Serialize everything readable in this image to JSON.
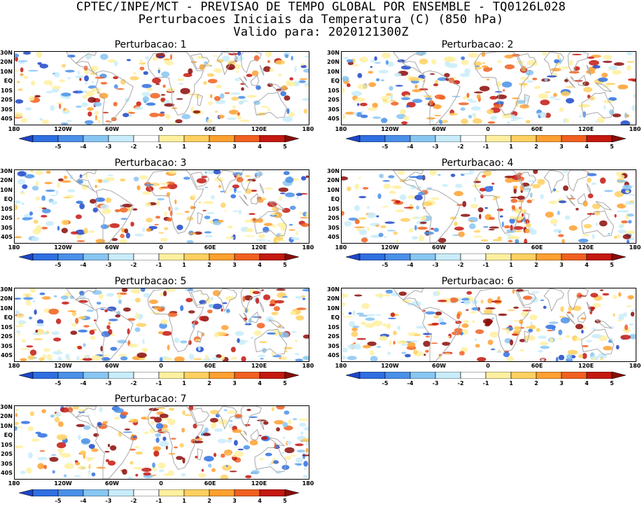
{
  "header": {
    "line1": "CPTEC/INPE/MCT - PREVISAO DE TEMPO GLOBAL POR ENSEMBLE - TQ0126L028",
    "line2": "Perturbacoes Iniciais da Temperatura (C) (850 hPa)",
    "line3": "Valido para: 2020121300Z"
  },
  "map_axes": {
    "lat_labels": [
      "30N",
      "20N",
      "10N",
      "EQ",
      "10S",
      "20S",
      "30S",
      "40S"
    ],
    "lon_labels": [
      "180",
      "120W",
      "60W",
      "0",
      "60E",
      "120E",
      "180"
    ],
    "lon_values": [
      -180,
      -120,
      -60,
      0,
      60,
      120,
      180
    ],
    "lat_values": [
      30,
      20,
      10,
      0,
      -10,
      -20,
      -30,
      -40
    ],
    "lat_range": [
      -45,
      32
    ],
    "lon_range": [
      -180,
      180
    ]
  },
  "colorbar": {
    "labels": [
      "-5",
      "-4",
      "-3",
      "-2",
      "-1",
      "1",
      "2",
      "3",
      "4",
      "5"
    ],
    "colors": [
      "#1e46c8",
      "#2f6fe0",
      "#4a90e8",
      "#88c6f2",
      "#c8ecfa",
      "#ffffff",
      "#fff0a0",
      "#ffd060",
      "#ffa030",
      "#f06020",
      "#c41810",
      "#8a0c08"
    ]
  },
  "panels": [
    {
      "title": "Perturbacao: 1"
    },
    {
      "title": "Perturbacao: 2"
    },
    {
      "title": "Perturbacao: 3"
    },
    {
      "title": "Perturbacao: 4"
    },
    {
      "title": "Perturbacao: 5"
    },
    {
      "title": "Perturbacao: 6"
    },
    {
      "title": "Perturbacao: 7"
    }
  ],
  "style": {
    "land_outline_color": "#a8a8a8"
  }
}
